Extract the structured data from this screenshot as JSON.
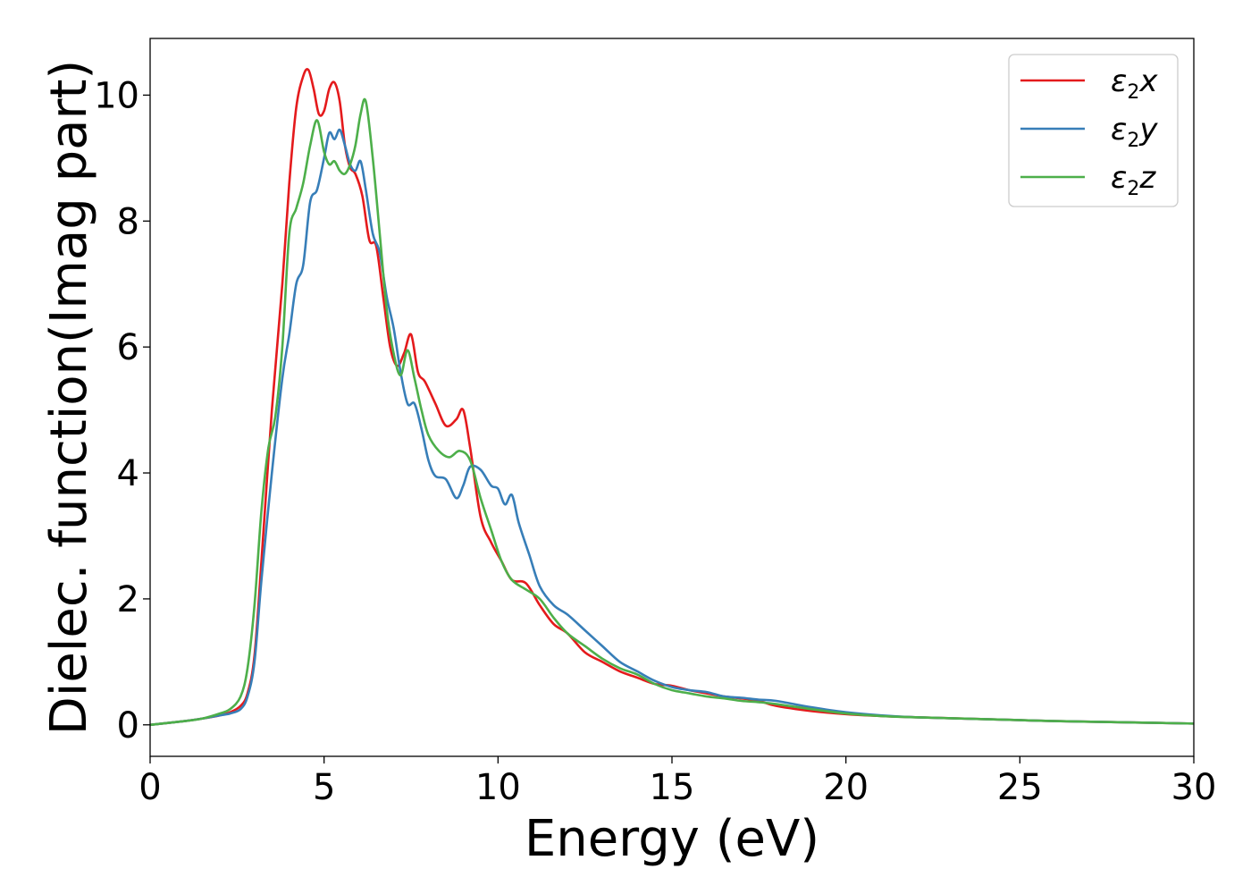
{
  "chart_data": {
    "type": "line",
    "xlabel": "Energy (eV)",
    "ylabel": "Dielec. function(Imag part)",
    "xlim": [
      0,
      30
    ],
    "ylim": [
      -0.5,
      10.9
    ],
    "xticks": [
      0,
      5,
      10,
      15,
      20,
      25,
      30
    ],
    "yticks": [
      0,
      2,
      4,
      6,
      8,
      10
    ],
    "grid": false,
    "legend": "top-right",
    "series": [
      {
        "name": "ε2x",
        "legend": {
          "base": "ε",
          "sub": "2",
          "tail": "x"
        },
        "color": "#e41a1c",
        "x": [
          0,
          1,
          1.5,
          2,
          2.3,
          2.6,
          2.8,
          3.0,
          3.2,
          3.5,
          3.8,
          4.0,
          4.2,
          4.4,
          4.55,
          4.7,
          4.85,
          5.0,
          5.15,
          5.3,
          5.45,
          5.6,
          5.75,
          5.9,
          6.1,
          6.3,
          6.5,
          6.7,
          6.9,
          7.1,
          7.3,
          7.5,
          7.7,
          7.9,
          8.2,
          8.5,
          8.8,
          9.0,
          9.2,
          9.5,
          9.8,
          10.1,
          10.4,
          10.8,
          11.2,
          11.6,
          12.0,
          12.5,
          13.0,
          13.5,
          14.0,
          14.5,
          15.0,
          15.5,
          16.0,
          16.5,
          17.0,
          17.5,
          18.0,
          19.0,
          20.0,
          21.0,
          22.0,
          24.0,
          26.0,
          28.0,
          30.0
        ],
        "values": [
          0,
          0.06,
          0.1,
          0.15,
          0.2,
          0.3,
          0.5,
          1.1,
          2.6,
          5.0,
          7.0,
          8.6,
          9.8,
          10.3,
          10.4,
          10.1,
          9.7,
          9.75,
          10.1,
          10.2,
          9.9,
          9.2,
          8.85,
          8.75,
          8.4,
          7.7,
          7.6,
          6.8,
          6.0,
          5.7,
          5.9,
          6.2,
          5.6,
          5.45,
          5.1,
          4.75,
          4.85,
          5.0,
          4.4,
          3.3,
          2.9,
          2.6,
          2.3,
          2.25,
          1.9,
          1.6,
          1.45,
          1.15,
          1.0,
          0.85,
          0.75,
          0.65,
          0.62,
          0.55,
          0.5,
          0.45,
          0.42,
          0.38,
          0.3,
          0.22,
          0.17,
          0.14,
          0.12,
          0.09,
          0.06,
          0.04,
          0.02
        ]
      },
      {
        "name": "ε2y",
        "legend": {
          "base": "ε",
          "sub": "2",
          "tail": "y"
        },
        "color": "#377eb8",
        "x": [
          0,
          1,
          1.5,
          2,
          2.3,
          2.6,
          2.8,
          3.0,
          3.2,
          3.5,
          3.8,
          4.0,
          4.2,
          4.4,
          4.6,
          4.8,
          5.0,
          5.15,
          5.3,
          5.45,
          5.6,
          5.75,
          5.9,
          6.05,
          6.2,
          6.4,
          6.6,
          6.8,
          7.0,
          7.2,
          7.4,
          7.6,
          7.8,
          8.0,
          8.2,
          8.5,
          8.8,
          9.0,
          9.2,
          9.5,
          9.8,
          10.0,
          10.2,
          10.4,
          10.6,
          10.9,
          11.2,
          11.6,
          12.0,
          12.5,
          13.0,
          13.5,
          14.0,
          14.5,
          15.0,
          15.5,
          16.0,
          16.5,
          17.0,
          17.5,
          18.0,
          19.0,
          20.0,
          21.0,
          22.0,
          24.0,
          26.0,
          28.0,
          30.0
        ],
        "values": [
          0,
          0.06,
          0.1,
          0.15,
          0.18,
          0.25,
          0.45,
          1.0,
          2.3,
          4.0,
          5.5,
          6.2,
          7.0,
          7.3,
          8.3,
          8.5,
          9.0,
          9.4,
          9.3,
          9.45,
          9.2,
          8.9,
          8.8,
          8.95,
          8.5,
          7.8,
          7.5,
          6.8,
          6.3,
          5.6,
          5.1,
          5.1,
          4.7,
          4.2,
          3.95,
          3.9,
          3.6,
          3.8,
          4.1,
          4.05,
          3.8,
          3.75,
          3.5,
          3.65,
          3.2,
          2.7,
          2.2,
          1.9,
          1.75,
          1.5,
          1.25,
          1.0,
          0.85,
          0.7,
          0.6,
          0.55,
          0.52,
          0.45,
          0.43,
          0.4,
          0.38,
          0.28,
          0.2,
          0.15,
          0.12,
          0.09,
          0.06,
          0.04,
          0.02
        ]
      },
      {
        "name": "ε2z",
        "legend": {
          "base": "ε",
          "sub": "2",
          "tail": "z"
        },
        "color": "#4daf4a",
        "x": [
          0,
          1,
          1.5,
          2,
          2.3,
          2.6,
          2.8,
          3.0,
          3.2,
          3.4,
          3.6,
          3.8,
          4.0,
          4.2,
          4.4,
          4.6,
          4.8,
          5.0,
          5.15,
          5.3,
          5.45,
          5.6,
          5.75,
          5.9,
          6.05,
          6.2,
          6.4,
          6.6,
          6.8,
          7.0,
          7.2,
          7.4,
          7.6,
          7.8,
          8.0,
          8.3,
          8.6,
          8.9,
          9.2,
          9.5,
          9.8,
          10.1,
          10.4,
          10.8,
          11.2,
          11.6,
          12.0,
          12.5,
          13.0,
          13.5,
          14.0,
          14.5,
          15.0,
          15.5,
          16.0,
          16.5,
          17.0,
          17.5,
          18.0,
          19.0,
          20.0,
          21.0,
          22.0,
          24.0,
          26.0,
          28.0,
          30.0
        ],
        "values": [
          0,
          0.06,
          0.1,
          0.18,
          0.25,
          0.45,
          0.9,
          1.9,
          3.4,
          4.4,
          4.9,
          6.0,
          7.8,
          8.2,
          8.6,
          9.2,
          9.6,
          9.1,
          8.9,
          8.95,
          8.8,
          8.75,
          8.9,
          9.2,
          9.7,
          9.9,
          9.0,
          7.8,
          6.6,
          5.9,
          5.55,
          5.95,
          5.5,
          5.0,
          4.6,
          4.35,
          4.25,
          4.35,
          4.2,
          3.6,
          3.1,
          2.6,
          2.3,
          2.15,
          2.0,
          1.7,
          1.45,
          1.25,
          1.05,
          0.9,
          0.8,
          0.65,
          0.55,
          0.5,
          0.45,
          0.42,
          0.38,
          0.36,
          0.33,
          0.25,
          0.18,
          0.14,
          0.12,
          0.09,
          0.06,
          0.04,
          0.02
        ]
      }
    ]
  }
}
